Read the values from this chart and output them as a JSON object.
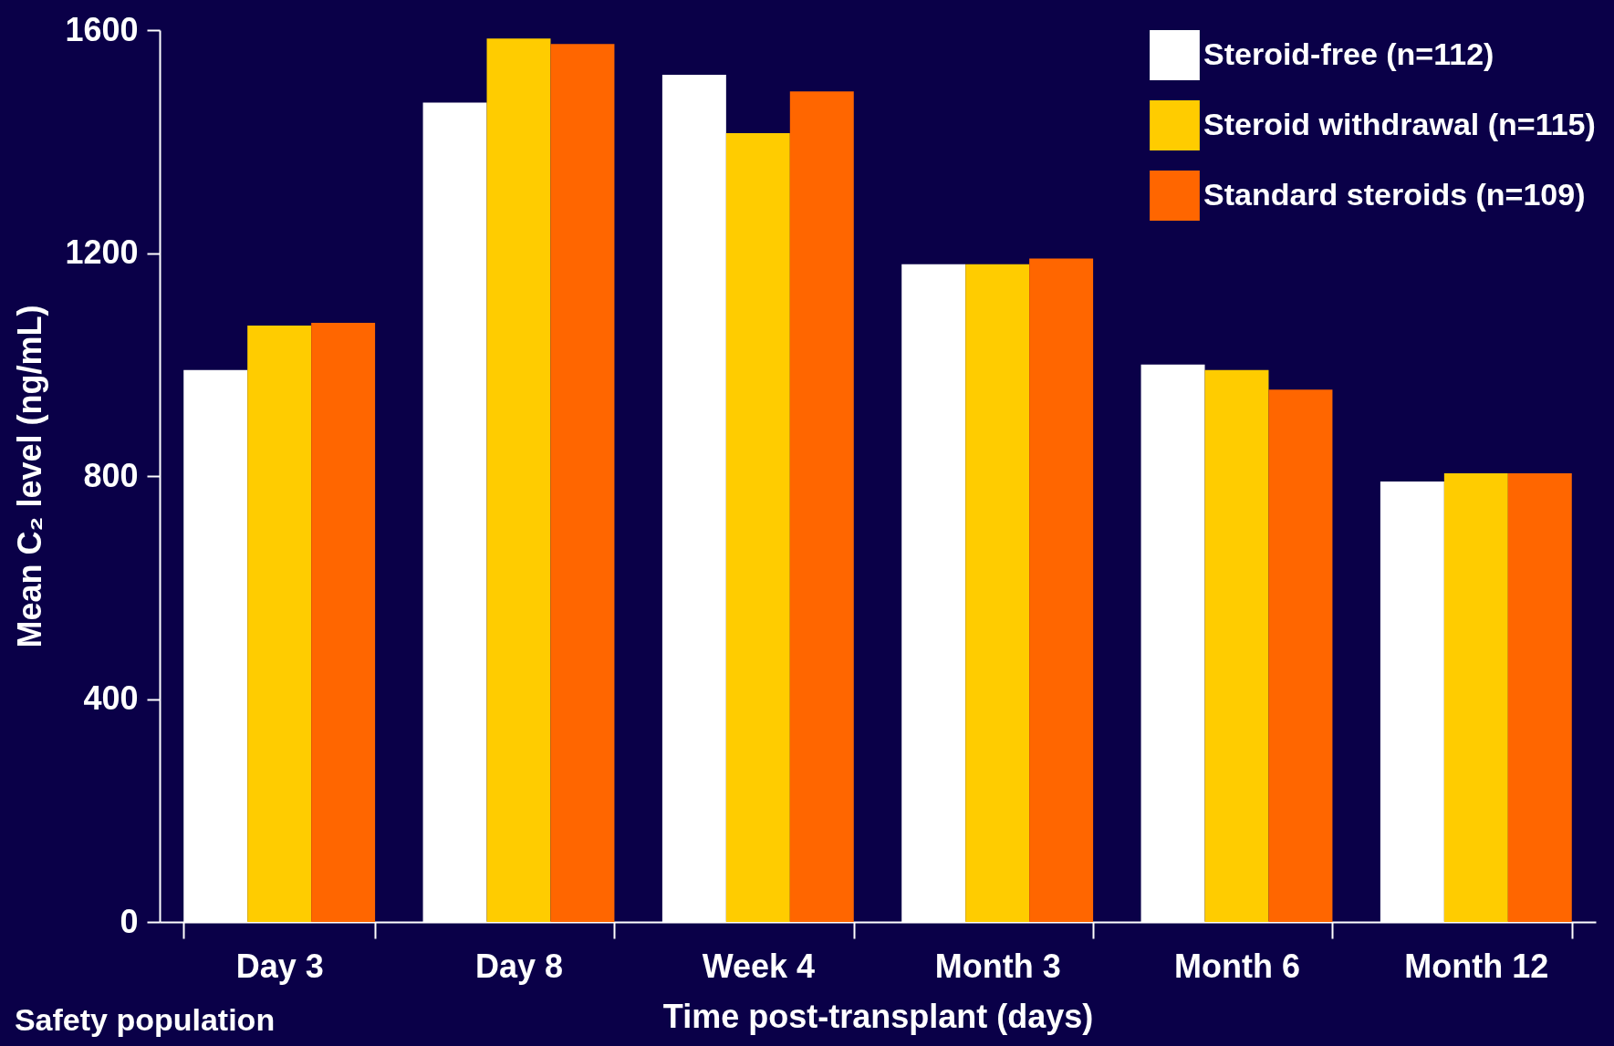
{
  "chart_data": {
    "type": "bar",
    "categories": [
      "Day 3",
      "Day 8",
      "Week 4",
      "Month 3",
      "Month 6",
      "Month 12"
    ],
    "series": [
      {
        "name": "Steroid-free (n=112)",
        "color": "#ffffff",
        "values": [
          990,
          1470,
          1520,
          1180,
          1000,
          790
        ]
      },
      {
        "name": "Steroid withdrawal (n=115)",
        "color": "#ffcc00",
        "values": [
          1070,
          1585,
          1415,
          1180,
          990,
          805
        ]
      },
      {
        "name": "Standard steroids (n=109)",
        "color": "#ff6600",
        "values": [
          1075,
          1575,
          1490,
          1190,
          955,
          805
        ]
      }
    ],
    "xlabel": "Time post-transplant (days)",
    "ylabel": "Mean C₂ level (ng/mL)",
    "ylim": [
      0,
      1600
    ],
    "yticks": [
      0,
      400,
      800,
      1200,
      1600
    ],
    "annotations": [
      "Safety population"
    ],
    "legend": "top right",
    "grid": false
  }
}
